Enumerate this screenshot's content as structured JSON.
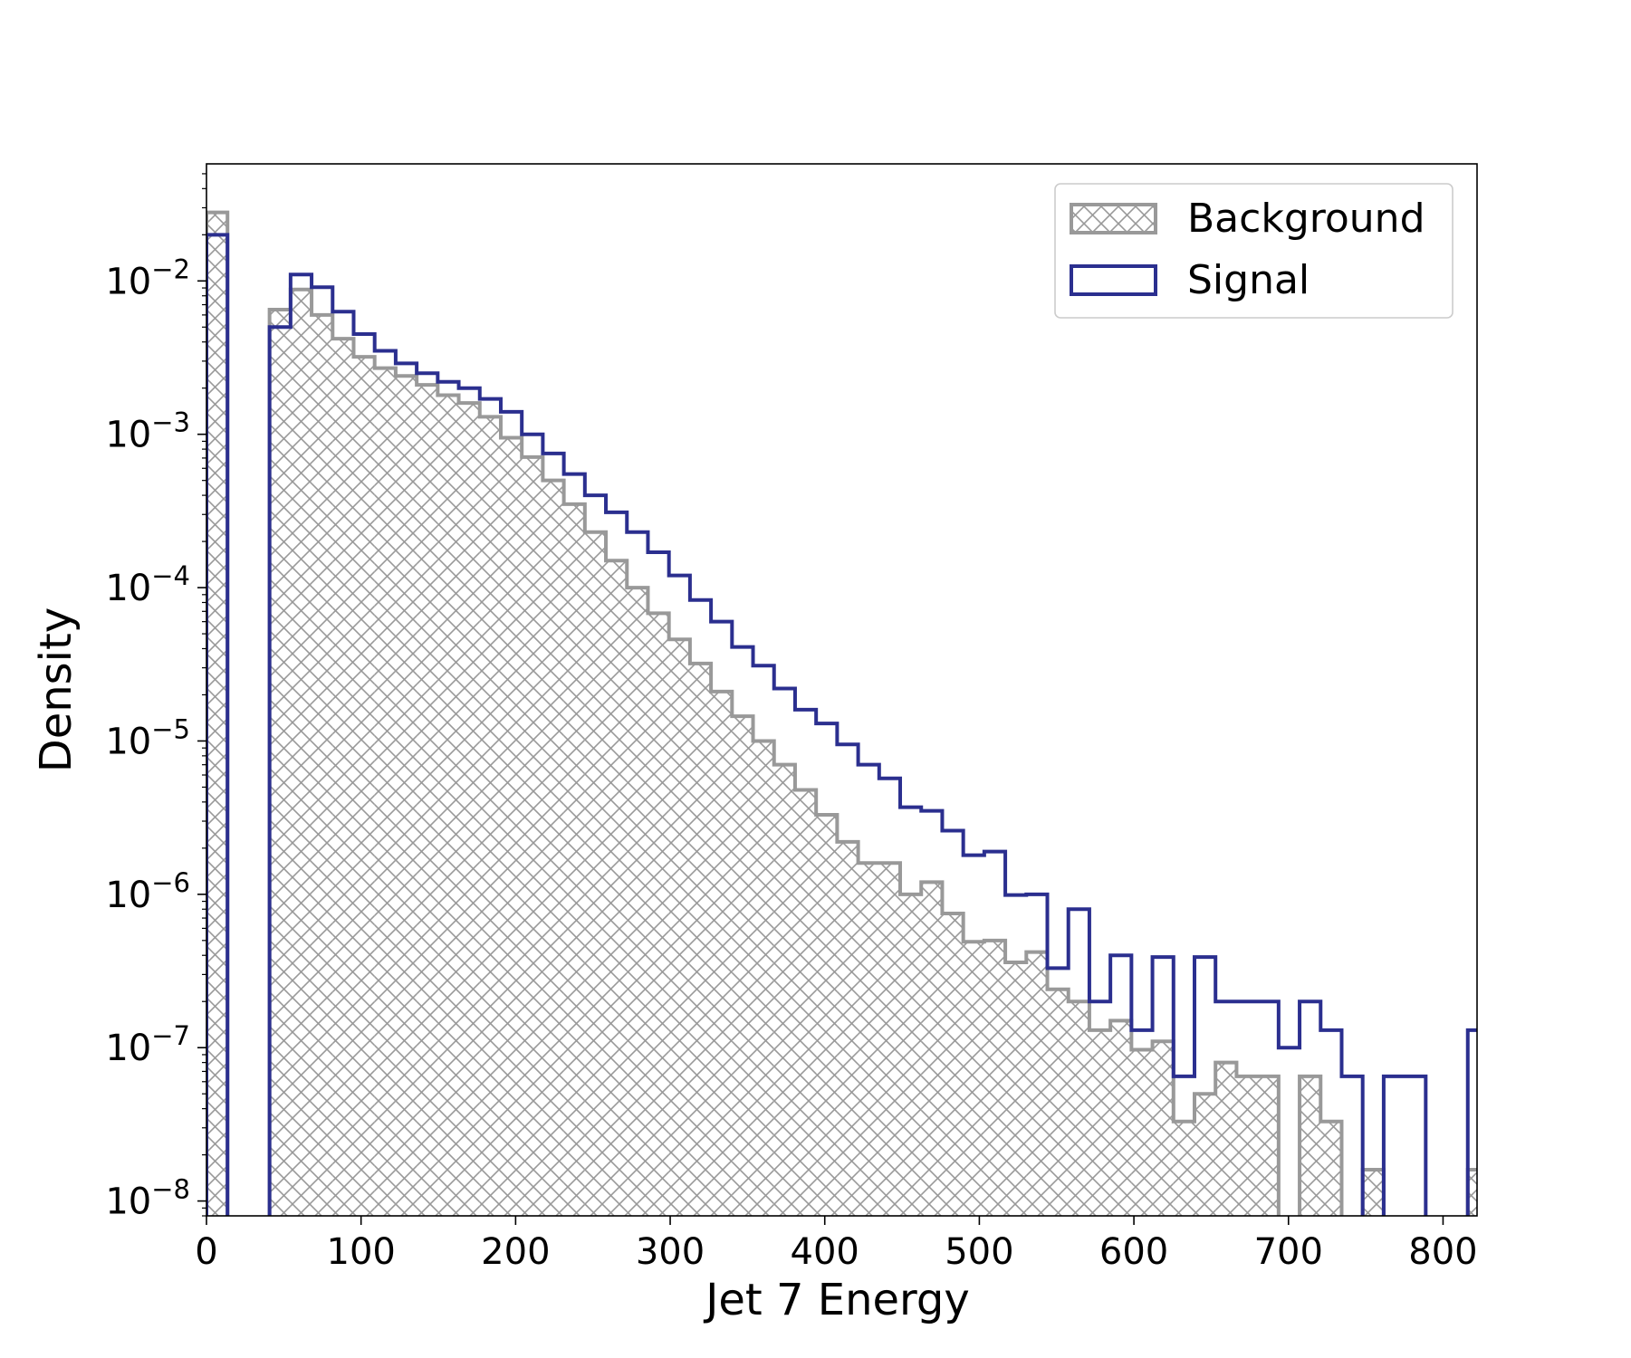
{
  "chart_data": {
    "type": "histogram",
    "xlabel": "Jet 7 Energy",
    "ylabel": "Density",
    "xlim": [
      0,
      822
    ],
    "ylim": [
      8e-09,
      0.058
    ],
    "yscale": "log",
    "grid": false,
    "legend_position": "top-right",
    "bin_width": 13.6,
    "bin_start": 0,
    "x_ticks": [
      0,
      100,
      200,
      300,
      400,
      500,
      600,
      700,
      800
    ],
    "y_ticks": [
      {
        "value": 1e-08,
        "base": "10",
        "exp": "−8"
      },
      {
        "value": 1e-07,
        "base": "10",
        "exp": "−7"
      },
      {
        "value": 1e-06,
        "base": "10",
        "exp": "−6"
      },
      {
        "value": 1e-05,
        "base": "10",
        "exp": "−5"
      },
      {
        "value": 0.0001,
        "base": "10",
        "exp": "−4"
      },
      {
        "value": 0.001,
        "base": "10",
        "exp": "−3"
      },
      {
        "value": 0.01,
        "base": "10",
        "exp": "−2"
      }
    ],
    "series": [
      {
        "name": "Background",
        "style": "hatched",
        "color": "#999999",
        "values": [
          0.028,
          0,
          0,
          0.0065,
          0.0088,
          0.006,
          0.0042,
          0.0032,
          0.0027,
          0.0024,
          0.0021,
          0.0018,
          0.0016,
          0.0013,
          0.00095,
          0.00071,
          0.0005,
          0.00035,
          0.00023,
          0.00015,
          0.0001,
          6.8e-05,
          4.6e-05,
          3.2e-05,
          2.1e-05,
          1.45e-05,
          1e-05,
          7e-06,
          4.8e-06,
          3.3e-06,
          2.2e-06,
          1.6e-06,
          1.6e-06,
          1e-06,
          1.2e-06,
          7.5e-07,
          4.9e-07,
          5e-07,
          3.6e-07,
          4.2e-07,
          2.4e-07,
          2e-07,
          1.3e-07,
          1.5e-07,
          9.7e-08,
          1.1e-07,
          3.3e-08,
          5e-08,
          8e-08,
          6.5e-08,
          6.5e-08,
          0,
          6.5e-08,
          3.3e-08,
          0,
          1.6e-08,
          0,
          0,
          0,
          0,
          1.6e-08
        ],
        "values_note": "bin heights in density units; 0 = empty bin"
      },
      {
        "name": "Signal",
        "style": "step",
        "color": "#2b2f8f",
        "values": [
          0.02,
          0,
          0,
          0.005,
          0.011,
          0.0091,
          0.0063,
          0.0045,
          0.0035,
          0.0029,
          0.0025,
          0.0022,
          0.002,
          0.0017,
          0.0014,
          0.001,
          0.00075,
          0.00055,
          0.0004,
          0.00031,
          0.00023,
          0.00017,
          0.00012,
          8.3e-05,
          6e-05,
          4.1e-05,
          3.1e-05,
          2.2e-05,
          1.6e-05,
          1.3e-05,
          9.5e-06,
          7e-06,
          5.7e-06,
          3.7e-06,
          3.5e-06,
          2.6e-06,
          1.8e-06,
          1.9e-06,
          9.9e-07,
          1e-06,
          3.3e-07,
          8e-07,
          2e-07,
          4e-07,
          1.3e-07,
          3.9e-07,
          6.5e-08,
          3.9e-07,
          2e-07,
          2e-07,
          2e-07,
          1e-07,
          2e-07,
          1.3e-07,
          6.5e-08,
          0,
          6.5e-08,
          6.5e-08,
          0,
          0,
          1.3e-07,
          0
        ]
      }
    ]
  }
}
